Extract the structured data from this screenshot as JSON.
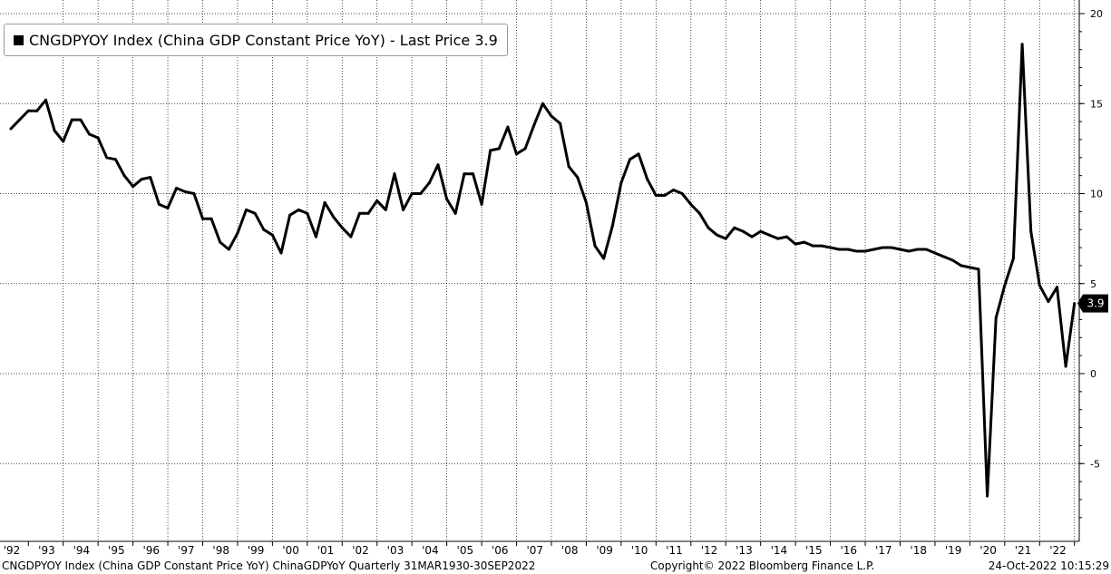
{
  "legend": {
    "text": "CNGDPYOY Index (China GDP Constant Price YoY) - Last Price 3.9"
  },
  "footer": {
    "left": "CNGDPYOY Index (China GDP Constant Price YoY) ChinaGDPYoY  Quarterly 31MAR1930-30SEP2022",
    "center": "Copyright© 2022 Bloomberg Finance L.P.",
    "right": "24-Oct-2022 10:15:29"
  },
  "last_price_label": "3.9",
  "colors": {
    "line": "#000000",
    "grid": "#000000",
    "last_price_bg": "#000000"
  },
  "chart_data": {
    "type": "line",
    "title": "",
    "xlabel": "",
    "ylabel": "",
    "xlim": [
      1992,
      2023
    ],
    "ylim": [
      -8,
      20
    ],
    "yticks": [
      20,
      15,
      10,
      5,
      0,
      -5
    ],
    "xtick_labels": [
      "'92",
      "'93",
      "'94",
      "'95",
      "'96",
      "'97",
      "'98",
      "'99",
      "'00",
      "'01",
      "'02",
      "'03",
      "'04",
      "'05",
      "'06",
      "'07",
      "'08",
      "'09",
      "'10",
      "'11",
      "'12",
      "'13",
      "'14",
      "'15",
      "'16",
      "'17",
      "'18",
      "'19",
      "'20",
      "'21",
      "'22"
    ],
    "grid": true,
    "legend_position": "top-left",
    "series": [
      {
        "name": "CNGDPYOY Index (China GDP Constant Price YoY)",
        "x": [
          "1992Q1",
          "1992Q2",
          "1992Q3",
          "1992Q4",
          "1993Q1",
          "1993Q2",
          "1993Q3",
          "1993Q4",
          "1994Q1",
          "1994Q2",
          "1994Q3",
          "1994Q4",
          "1995Q1",
          "1995Q2",
          "1995Q3",
          "1995Q4",
          "1996Q1",
          "1996Q2",
          "1996Q3",
          "1996Q4",
          "1997Q1",
          "1997Q2",
          "1997Q3",
          "1997Q4",
          "1998Q1",
          "1998Q2",
          "1998Q3",
          "1998Q4",
          "1999Q1",
          "1999Q2",
          "1999Q3",
          "1999Q4",
          "2000Q1",
          "2000Q2",
          "2000Q3",
          "2000Q4",
          "2001Q1",
          "2001Q2",
          "2001Q3",
          "2001Q4",
          "2002Q1",
          "2002Q2",
          "2002Q3",
          "2002Q4",
          "2003Q1",
          "2003Q2",
          "2003Q3",
          "2003Q4",
          "2004Q1",
          "2004Q2",
          "2004Q3",
          "2004Q4",
          "2005Q1",
          "2005Q2",
          "2005Q3",
          "2005Q4",
          "2006Q1",
          "2006Q2",
          "2006Q3",
          "2006Q4",
          "2007Q1",
          "2007Q2",
          "2007Q3",
          "2007Q4",
          "2008Q1",
          "2008Q2",
          "2008Q3",
          "2008Q4",
          "2009Q1",
          "2009Q2",
          "2009Q3",
          "2009Q4",
          "2010Q1",
          "2010Q2",
          "2010Q3",
          "2010Q4",
          "2011Q1",
          "2011Q2",
          "2011Q3",
          "2011Q4",
          "2012Q1",
          "2012Q2",
          "2012Q3",
          "2012Q4",
          "2013Q1",
          "2013Q2",
          "2013Q3",
          "2013Q4",
          "2014Q1",
          "2014Q2",
          "2014Q3",
          "2014Q4",
          "2015Q1",
          "2015Q2",
          "2015Q3",
          "2015Q4",
          "2016Q1",
          "2016Q2",
          "2016Q3",
          "2016Q4",
          "2017Q1",
          "2017Q2",
          "2017Q3",
          "2017Q4",
          "2018Q1",
          "2018Q2",
          "2018Q3",
          "2018Q4",
          "2019Q1",
          "2019Q2",
          "2019Q3",
          "2019Q4",
          "2020Q1",
          "2020Q2",
          "2020Q3",
          "2020Q4",
          "2021Q1",
          "2021Q2",
          "2021Q3",
          "2021Q4",
          "2022Q1",
          "2022Q2",
          "2022Q3"
        ],
        "values": [
          13.6,
          14.1,
          14.6,
          14.6,
          15.2,
          13.5,
          12.9,
          14.1,
          14.1,
          13.3,
          13.1,
          12.0,
          11.9,
          11.0,
          10.4,
          10.8,
          10.9,
          9.4,
          9.2,
          10.3,
          10.1,
          10.0,
          8.6,
          8.6,
          7.3,
          6.9,
          7.8,
          9.1,
          8.9,
          8.0,
          7.7,
          6.7,
          8.8,
          9.1,
          8.9,
          7.6,
          9.5,
          8.7,
          8.1,
          7.6,
          8.9,
          8.9,
          9.6,
          9.1,
          11.1,
          9.1,
          10.0,
          10.0,
          10.6,
          11.6,
          9.7,
          8.9,
          11.1,
          11.1,
          9.4,
          12.4,
          12.5,
          13.7,
          12.2,
          12.5,
          13.8,
          15.0,
          14.3,
          13.9,
          11.5,
          10.9,
          9.5,
          7.1,
          6.4,
          8.2,
          10.6,
          11.9,
          12.2,
          10.8,
          9.9,
          9.9,
          10.2,
          10.0,
          9.4,
          8.9,
          8.1,
          7.7,
          7.5,
          8.1,
          7.9,
          7.6,
          7.9,
          7.7,
          7.5,
          7.6,
          7.2,
          7.3,
          7.1,
          7.1,
          7.0,
          6.9,
          6.9,
          6.8,
          6.8,
          6.9,
          7.0,
          7.0,
          6.9,
          6.8,
          6.9,
          6.9,
          6.7,
          6.5,
          6.3,
          6.0,
          5.9,
          5.8,
          -6.8,
          3.1,
          4.9,
          6.4,
          18.3,
          7.9,
          4.9,
          4.0,
          4.8,
          0.4,
          3.9
        ]
      }
    ]
  }
}
